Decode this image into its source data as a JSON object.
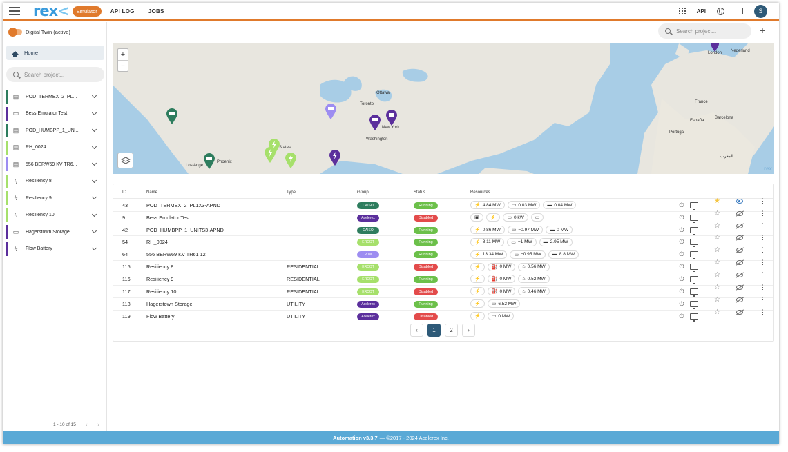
{
  "header": {
    "logo": "rex",
    "logo_suffix": "<",
    "badge": "Emulator",
    "nav": [
      "API LOG",
      "JOBS"
    ],
    "api_label": "API",
    "avatar_initial": "S",
    "accent": "#e07a2c"
  },
  "sidebar": {
    "twin_label": "Digital Twin (active)",
    "home_label": "Home",
    "search_placeholder": "Search project...",
    "items": [
      {
        "label": "POD_TERMEX_2_PL...",
        "icon": "solar-icon",
        "color": "#2e7d5e"
      },
      {
        "label": "Bess Emulator Test",
        "icon": "battery-icon",
        "color": "#5b2f9c"
      },
      {
        "label": "POD_HUMBPP_1_UN...",
        "icon": "solar-icon",
        "color": "#2e7d5e"
      },
      {
        "label": "RH_0024",
        "icon": "solar-icon",
        "color": "#a6e06b"
      },
      {
        "label": "556 BERW69 KV TR6...",
        "icon": "solar-icon",
        "color": "#9d8df1"
      },
      {
        "label": "Resiliency 8",
        "icon": "bolt-icon",
        "color": "#a6e06b"
      },
      {
        "label": "Resiliency 9",
        "icon": "bolt-icon",
        "color": "#a6e06b"
      },
      {
        "label": "Resiliency 10",
        "icon": "bolt-icon",
        "color": "#a6e06b"
      },
      {
        "label": "Hagerstown Storage",
        "icon": "battery-icon",
        "color": "#5b2f9c"
      },
      {
        "label": "Flow Battery",
        "icon": "bolt-icon",
        "color": "#5b2f9c"
      }
    ],
    "pager_text": "1 - 10 of 15"
  },
  "main": {
    "search_placeholder": "Search project...",
    "map_labels": {
      "ottawa": "Ottawa",
      "toronto": "Toronto",
      "newyork": "New York",
      "washington": "Washington",
      "states": "d States",
      "losangeles": "Los Ange",
      "phoenix": "Phoenix",
      "london": "London",
      "nederland": "Nederland",
      "france": "France",
      "portugal": "Portugal",
      "barcelona": "Barcelona",
      "espana": "España",
      "morocco": "المغرب",
      "rex": "rex"
    }
  },
  "table": {
    "headers": {
      "id": "ID",
      "name": "Name",
      "type": "Type",
      "group": "Group",
      "status": "Status",
      "resources": "Resources"
    },
    "rows": [
      {
        "id": "43",
        "name": "POD_TERMEX_2_PL1X3-APND",
        "type": "",
        "group": "CAISO",
        "group_color": "#2e7d5e",
        "status": "Running",
        "status_color": "#6cc04a",
        "resources": [
          {
            "icon": "⚡",
            "value": "4.84 MW"
          },
          {
            "icon": "▭",
            "value": "0.03 MW"
          },
          {
            "icon": "▬",
            "value": "0.04 MW"
          }
        ],
        "starred": true,
        "visible": true
      },
      {
        "id": "9",
        "name": "Bess Emulator Test",
        "type": "",
        "group": "Acelerex",
        "group_color": "#5b2f9c",
        "status": "Disabled",
        "status_color": "#e34b4b",
        "resources": [
          {
            "icon": "▣",
            "value": ""
          },
          {
            "icon": "⚡",
            "value": ""
          },
          {
            "icon": "▭",
            "value": "0 kW"
          },
          {
            "icon": "▭",
            "value": ""
          }
        ],
        "starred": false,
        "visible": false
      },
      {
        "id": "42",
        "name": "POD_HUMBPP_1_UNITS3-APND",
        "type": "",
        "group": "CAISO",
        "group_color": "#2e7d5e",
        "status": "Running",
        "status_color": "#6cc04a",
        "resources": [
          {
            "icon": "⚡",
            "value": "0.86 MW"
          },
          {
            "icon": "▭",
            "value": "−0.97 MW"
          },
          {
            "icon": "▬",
            "value": "0 MW"
          }
        ],
        "starred": false,
        "visible": false
      },
      {
        "id": "54",
        "name": "RH_0024",
        "type": "",
        "group": "ERCOT",
        "group_color": "#a6e06b",
        "status": "Running",
        "status_color": "#6cc04a",
        "resources": [
          {
            "icon": "⚡",
            "value": "8.11 MW"
          },
          {
            "icon": "▭",
            "value": "−1 MW"
          },
          {
            "icon": "▬",
            "value": "2.95 MW"
          }
        ],
        "starred": false,
        "visible": false
      },
      {
        "id": "64",
        "name": "556 BERW69 KV TR61 12",
        "type": "",
        "group": "PJM",
        "group_color": "#9d8df1",
        "status": "Running",
        "status_color": "#6cc04a",
        "resources": [
          {
            "icon": "⚡",
            "value": "13.34 MW"
          },
          {
            "icon": "▭",
            "value": "−0.95 MW"
          },
          {
            "icon": "▬",
            "value": "8.8 MW"
          }
        ],
        "starred": false,
        "visible": false
      },
      {
        "id": "115",
        "name": "Resiliency 8",
        "type": "RESIDENTIAL",
        "group": "ERCOT",
        "group_color": "#a6e06b",
        "status": "Disabled",
        "status_color": "#e34b4b",
        "resources": [
          {
            "icon": "⚡",
            "value": ""
          },
          {
            "icon": "⛽",
            "value": "0 MW"
          },
          {
            "icon": "⌂",
            "value": "0.56 MW"
          }
        ],
        "starred": false,
        "visible": false
      },
      {
        "id": "116",
        "name": "Resiliency 9",
        "type": "RESIDENTIAL",
        "group": "ERCOT",
        "group_color": "#a6e06b",
        "status": "Running",
        "status_color": "#6cc04a",
        "resources": [
          {
            "icon": "⚡",
            "value": ""
          },
          {
            "icon": "⛽",
            "value": "0 MW"
          },
          {
            "icon": "⌂",
            "value": "0.52 MW"
          }
        ],
        "starred": false,
        "visible": false
      },
      {
        "id": "117",
        "name": "Resiliency 10",
        "type": "RESIDENTIAL",
        "group": "ERCOT",
        "group_color": "#a6e06b",
        "status": "Disabled",
        "status_color": "#e34b4b",
        "resources": [
          {
            "icon": "⚡",
            "value": ""
          },
          {
            "icon": "⛽",
            "value": "0 MW"
          },
          {
            "icon": "⌂",
            "value": "0.46 MW"
          }
        ],
        "starred": false,
        "visible": false
      },
      {
        "id": "118",
        "name": "Hagerstown Storage",
        "type": "UTILITY",
        "group": "Acelerex",
        "group_color": "#5b2f9c",
        "status": "Running",
        "status_color": "#6cc04a",
        "resources": [
          {
            "icon": "⚡",
            "value": ""
          },
          {
            "icon": "▭",
            "value": "6.52 MW"
          }
        ],
        "starred": false,
        "visible": false
      },
      {
        "id": "119",
        "name": "Flow Battery",
        "type": "UTILITY",
        "group": "Acelerex",
        "group_color": "#5b2f9c",
        "status": "Disabled",
        "status_color": "#e34b4b",
        "resources": [
          {
            "icon": "⚡",
            "value": ""
          },
          {
            "icon": "▭",
            "value": "0 MW"
          }
        ],
        "starred": false,
        "visible": false
      }
    ],
    "pages": [
      "1",
      "2"
    ],
    "current_page": "1"
  },
  "footer": {
    "version": "Automation v3.3.7",
    "copyright": "— ©2017 - 2024 Acelerex Inc."
  }
}
